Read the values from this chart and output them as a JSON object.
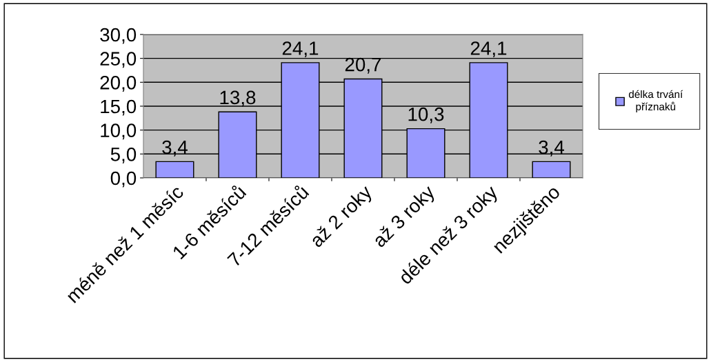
{
  "chart_data": {
    "type": "bar",
    "categories": [
      "méně než 1 měsíc",
      "1-6 měsíců",
      "7-12 měsíců",
      "až 2 roky",
      "až 3 roky",
      "déle než 3 roky",
      "nezjištěno"
    ],
    "series": [
      {
        "name": "délka trvání příznaků",
        "color": "#9999ff",
        "values": [
          3.4,
          13.8,
          24.1,
          20.7,
          10.3,
          24.1,
          3.4
        ],
        "value_labels": [
          "3,4",
          "13,8",
          "24,1",
          "20,7",
          "10,3",
          "24,1",
          "3,4"
        ]
      }
    ],
    "ylim": [
      0,
      30
    ],
    "yticks": [
      {
        "value": 0,
        "label": "0,0"
      },
      {
        "value": 5,
        "label": "5,0"
      },
      {
        "value": 10,
        "label": "10,0"
      },
      {
        "value": 15,
        "label": "15,0"
      },
      {
        "value": 20,
        "label": "20,0"
      },
      {
        "value": 25,
        "label": "25,0"
      },
      {
        "value": 30,
        "label": "30,0"
      }
    ],
    "grid": "y",
    "legend": "right"
  }
}
